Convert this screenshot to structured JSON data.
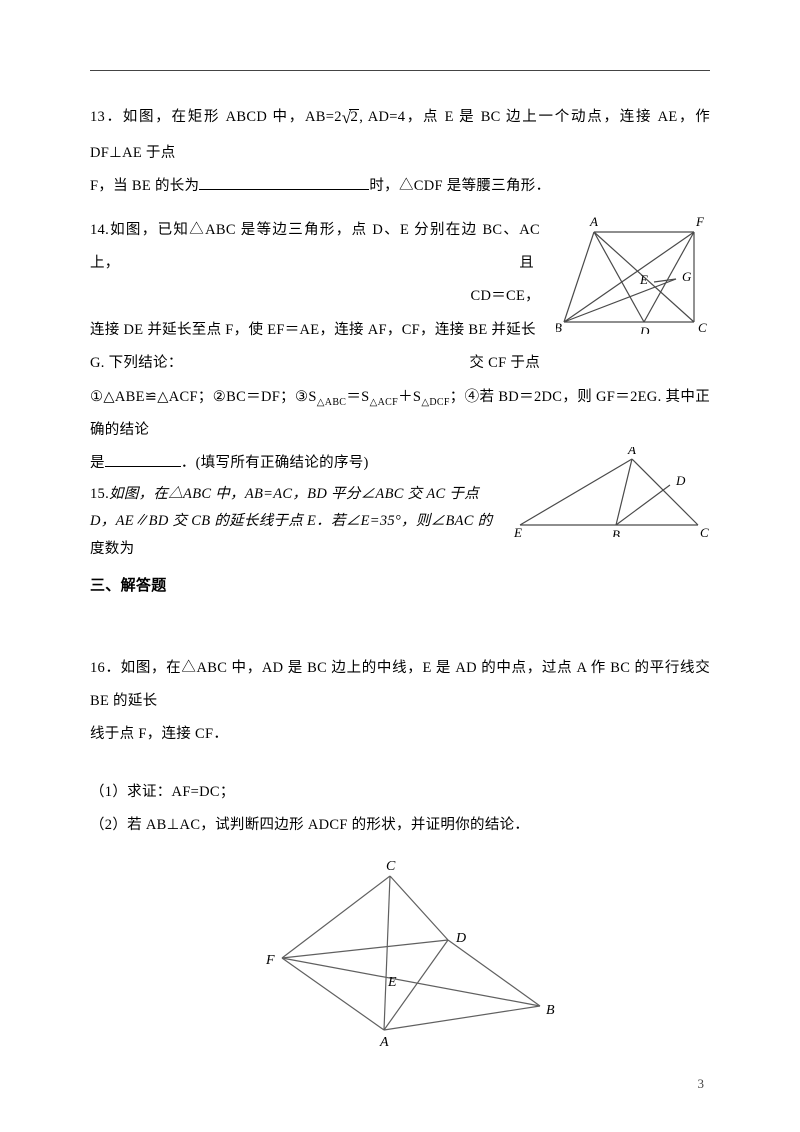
{
  "q13": {
    "num": "13．",
    "pre1": "如图，在矩形 ABCD 中，AB=2",
    "radicand": "2",
    "post1": ", AD=4，点 E 是 BC 边上一个动点，连接 AE，作 DF⊥AE 于点",
    "line2_pre": "F，当 BE 的长为",
    "line2_post": "时，△CDF 是等腰三角形．"
  },
  "q14": {
    "num": "14.",
    "line1a": "如图，已知△ABC 是等边三角形，点 D、E 分别在边 BC、AC 上，",
    "line1b": "且",
    "line2right": "CD＝CE，",
    "line2a": "连接 DE 并延长至点 F，使 EF＝AE，连接 AF，CF，连接 BE 并延长",
    "line2b": "交 CF 于点",
    "line3": "G. 下列结论：",
    "line4_pre": "①△ABE≌△ACF；②BC＝DF；③S",
    "s_abc": "△ABC",
    "eq1": "＝S",
    "s_acf": "△ACF",
    "plus": "＋S",
    "s_dcf": "△DCF",
    "line4_post": "；④若 BD＝2DC，则 GF＝2EG. 其中正确的结论",
    "line5_pre": "是",
    "line5_post": "．(填写所有正确结论的序号)"
  },
  "q15": {
    "num": "15.",
    "line1": "如图，在△ABC 中，AB=AC，BD 平分∠ABC 交 AC 于点",
    "line2": "D，AE∥BD 交 CB 的延长线于点 E．若∠E=35°，则∠BAC 的",
    "line3": "度数为"
  },
  "sec3": "三、解答题",
  "q16": {
    "num": "16．",
    "line1": "如图，在△ABC 中，AD 是 BC 边上的中线，E 是 AD 的中点，过点 A 作 BC 的平行线交 BE 的延长",
    "line2": "线于点 F，连接 CF．",
    "part1": "（1）求证：AF=DC；",
    "part2": "（2）若 AB⊥AC，试判断四边形 ADCF 的形状，并证明你的结论．"
  },
  "fig14": {
    "labels": {
      "A": "A",
      "B": "B",
      "C": "C",
      "D": "D",
      "E": "E",
      "F": "F",
      "G": "G"
    },
    "stroke": "#4a4a4a",
    "stroke_w": 1.2,
    "label_font": "italic 13px Times"
  },
  "fig15": {
    "labels": {
      "A": "A",
      "B": "B",
      "C": "C",
      "D": "D",
      "E": "E"
    },
    "stroke": "#4a4a4a",
    "stroke_w": 1.2,
    "label_font": "italic 13px Times"
  },
  "fig16": {
    "labels": {
      "A": "A",
      "B": "B",
      "C": "C",
      "D": "D",
      "E": "E",
      "F": "F"
    },
    "stroke": "#606060",
    "stroke_w": 1.2,
    "label_font": "italic 14px Times"
  },
  "page_number": "3"
}
